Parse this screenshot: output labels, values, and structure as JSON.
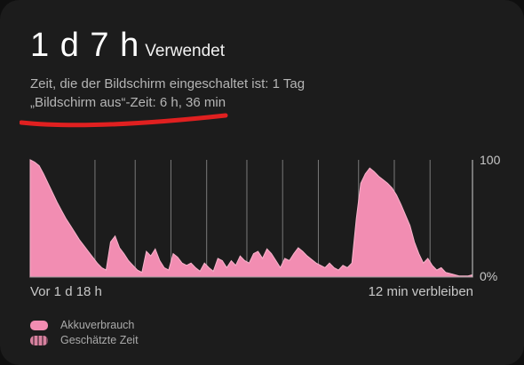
{
  "summary": {
    "value": "1 d 7 h",
    "unit_label": "Verwendet",
    "screen_on": "Zeit, die der Bildschirm eingeschaltet ist: 1 Tag",
    "screen_off": "„Bildschirm aus“-Zeit: 6 h, 36 min"
  },
  "chart_data": {
    "type": "area",
    "ylim": [
      0,
      100
    ],
    "yticks": [
      "100",
      "0%"
    ],
    "xlabel_left": "Vor 1 d 18 h",
    "xlabel_right": "12 min verbleiben",
    "x_count": 100,
    "series": [
      {
        "values": [
          100,
          98,
          95,
          88,
          80,
          72,
          64,
          57,
          50,
          44,
          38,
          32,
          27,
          22,
          17,
          12,
          8,
          6,
          30,
          35,
          25,
          20,
          14,
          10,
          6,
          4,
          22,
          18,
          24,
          14,
          8,
          6,
          20,
          17,
          12,
          10,
          12,
          8,
          5,
          12,
          8,
          5,
          16,
          14,
          8,
          14,
          10,
          18,
          14,
          12,
          20,
          22,
          16,
          24,
          20,
          14,
          8,
          16,
          14,
          20,
          25,
          22,
          18,
          15,
          12,
          10,
          8,
          12,
          8,
          6,
          10,
          8,
          12,
          50,
          80,
          88,
          93,
          90,
          86,
          83,
          80,
          76,
          70,
          62,
          53,
          44,
          30,
          20,
          12,
          16,
          10,
          6,
          8,
          4,
          3,
          2,
          1,
          1,
          1,
          2
        ]
      }
    ],
    "gridlines_x": [
      14.5,
      23.5,
      31.5,
      39.5,
      48.5,
      56.5,
      64.5,
      73.5,
      81.5,
      89.5
    ]
  },
  "legend": [
    {
      "label": "Akkuverbrauch",
      "color": "#f28db2"
    },
    {
      "label": "Geschätzte Zeit",
      "color": "#d7829f"
    }
  ],
  "colors": {
    "accent": "#f28db2",
    "annotation": "#e02020"
  }
}
